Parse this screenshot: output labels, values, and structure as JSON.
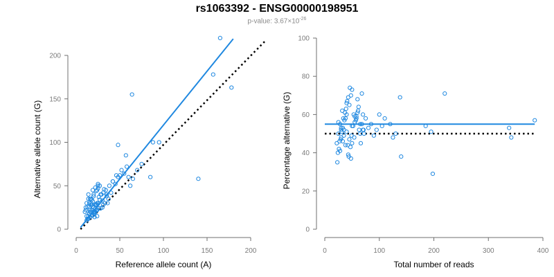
{
  "figure": {
    "title": "rs1063392 - ENSG00000198951",
    "subtitle_prefix": "p-value: 3.67×10",
    "subtitle_exponent": "-26",
    "point_color": "#1f88e0",
    "fit_color": "#1f88e0",
    "reference_line_color": "#000000"
  },
  "chart_data": [
    {
      "type": "scatter",
      "xlabel": "Reference allele count (A)",
      "ylabel": "Alternative allele count (G)",
      "xlim": [
        0,
        200
      ],
      "ylim": [
        0,
        200
      ],
      "xticks": [
        0,
        50,
        100,
        150,
        200
      ],
      "yticks": [
        0,
        50,
        100,
        150,
        200
      ],
      "grid": false,
      "fit_line": {
        "x": [
          5,
          180
        ],
        "y": [
          2,
          219
        ]
      },
      "reference_line": {
        "x": [
          5,
          217
        ],
        "y": [
          0,
          217
        ],
        "style": "dotted"
      },
      "x": [
        12,
        15,
        18,
        20,
        22,
        25,
        13,
        16,
        19,
        24,
        28,
        30,
        14,
        17,
        21,
        23,
        26,
        29,
        33,
        35,
        11,
        13,
        15,
        17,
        19,
        21,
        23,
        25,
        27,
        31,
        12,
        14,
        16,
        18,
        20,
        22,
        24,
        26,
        15,
        18,
        20,
        23,
        27,
        32,
        36,
        40,
        38,
        42,
        45,
        48,
        50,
        16,
        19,
        22,
        25,
        28,
        31,
        34,
        37,
        14,
        17,
        20,
        24,
        30,
        35,
        42,
        46,
        52,
        55,
        58,
        60,
        62,
        65,
        70,
        75,
        64,
        85,
        95,
        88,
        140,
        165,
        178,
        157,
        48,
        57,
        10,
        11,
        12,
        13,
        14,
        15,
        16,
        17,
        18,
        19,
        20,
        21,
        22,
        23,
        24,
        25
      ],
      "y": [
        15,
        18,
        22,
        25,
        28,
        30,
        12,
        20,
        26,
        30,
        24,
        33,
        35,
        28,
        18,
        22,
        37,
        40,
        30,
        38,
        22,
        26,
        30,
        20,
        16,
        14,
        44,
        47,
        50,
        42,
        10,
        12,
        14,
        16,
        18,
        20,
        22,
        24,
        26,
        34,
        40,
        29,
        34,
        46,
        30,
        42,
        50,
        55,
        52,
        60,
        62,
        35,
        45,
        48,
        52,
        40,
        28,
        45,
        35,
        40,
        30,
        20,
        15,
        25,
        40,
        55,
        62,
        68,
        64,
        72,
        60,
        50,
        58,
        68,
        75,
        155,
        60,
        100,
        100,
        58,
        220,
        163,
        178,
        97,
        85,
        20,
        25,
        30,
        12,
        15,
        18,
        22,
        35,
        28,
        32,
        38,
        20,
        24,
        28,
        45,
        50
      ]
    },
    {
      "type": "scatter",
      "xlabel": "Total number of reads",
      "ylabel": "Percentage alternative (G)",
      "xlim": [
        0,
        400
      ],
      "ylim": [
        0,
        100
      ],
      "xticks": [
        0,
        100,
        200,
        300,
        400
      ],
      "yticks": [
        0,
        20,
        40,
        60,
        80,
        100
      ],
      "grid": false,
      "fit_line": {
        "x": [
          0,
          385
        ],
        "y": [
          55,
          55
        ]
      },
      "reference_line": {
        "x": [
          0,
          385
        ],
        "y": [
          50,
          50
        ],
        "style": "dotted"
      },
      "x": [
        22,
        25,
        28,
        30,
        32,
        35,
        38,
        40,
        42,
        45,
        48,
        50,
        55,
        60,
        65,
        70,
        24,
        26,
        29,
        31,
        33,
        36,
        39,
        41,
        44,
        47,
        49,
        52,
        58,
        62,
        68,
        72,
        27,
        30,
        34,
        37,
        40,
        43,
        46,
        50,
        54,
        57,
        61,
        66,
        71,
        75,
        80,
        85,
        90,
        95,
        100,
        105,
        110,
        120,
        125,
        130,
        138,
        140,
        185,
        195,
        198,
        220,
        338,
        342,
        385,
        23,
        28,
        33,
        38,
        43,
        48,
        53,
        58,
        63,
        68,
        25,
        30,
        35,
        40,
        45,
        50,
        55,
        60,
        65,
        70
      ],
      "y": [
        45,
        50,
        55,
        48,
        62,
        52,
        58,
        60,
        44,
        65,
        70,
        73,
        56,
        68,
        55,
        60,
        40,
        42,
        47,
        51,
        53,
        57,
        63,
        67,
        38,
        43,
        49,
        54,
        59,
        64,
        71,
        50,
        46,
        52,
        58,
        61,
        66,
        69,
        74,
        54,
        48,
        57,
        62,
        45,
        52,
        58,
        53,
        55,
        49,
        52,
        60,
        54,
        58,
        55,
        48,
        50,
        69,
        38,
        54,
        51,
        29,
        71,
        53,
        48,
        57,
        35,
        41,
        46,
        44,
        39,
        37,
        60,
        58,
        52,
        55,
        56,
        53,
        49,
        51,
        47,
        45,
        59,
        61,
        50,
        52
      ]
    }
  ]
}
